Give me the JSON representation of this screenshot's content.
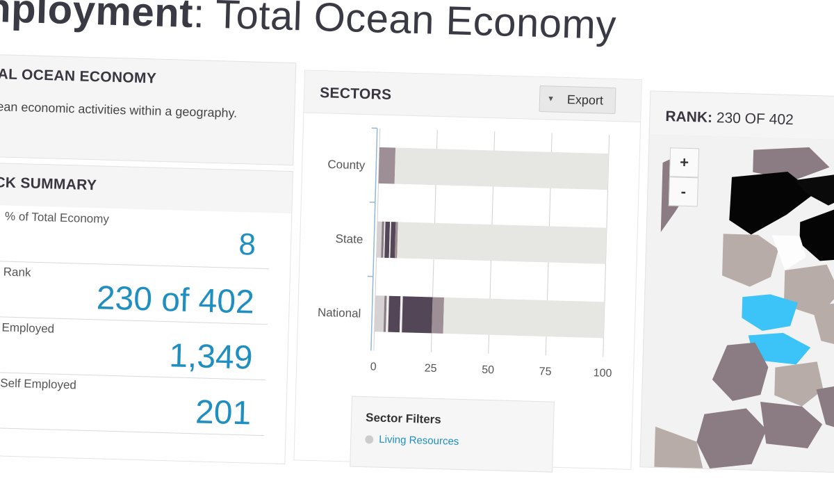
{
  "title": {
    "bold": "nployment",
    "rest": ": Total Ocean Economy"
  },
  "description": {
    "heading": "AL OCEAN ECONOMY",
    "text": "ean economic activities within a geography."
  },
  "summary": {
    "heading": "CK SUMMARY",
    "stats": [
      {
        "label": "% of Total Economy",
        "value": "8"
      },
      {
        "label": "Rank",
        "value": "230 of 402"
      },
      {
        "label": "Employed",
        "value": "1,349"
      },
      {
        "label": "Self Employed",
        "value": "201"
      }
    ]
  },
  "sectors": {
    "heading": "SECTORS",
    "export_label": "Export",
    "export_icon": "caret-down-icon"
  },
  "filters": {
    "title": "Sector Filters",
    "first_item": "Living Resources"
  },
  "map": {
    "rank_key": "RANK:",
    "rank_value": "230 OF 402",
    "zoom_in": "+",
    "zoom_out": "-"
  },
  "colors": {
    "accent": "#1e8fc0",
    "highlight": "#3cc3f7"
  },
  "chart_data": {
    "type": "bar",
    "stacked": true,
    "orientation": "horizontal",
    "categories": [
      "County",
      "State",
      "National"
    ],
    "xlim": [
      0,
      100
    ],
    "xticks": [
      0,
      25,
      50,
      75,
      100
    ],
    "series": [
      {
        "values": [
          0,
          2,
          4
        ],
        "color": "#d6d1d3"
      },
      {
        "values": [
          0,
          1,
          1
        ],
        "color": "#8a7f86"
      },
      {
        "values": [
          0,
          0.5,
          1
        ],
        "color": "#f0eeef"
      },
      {
        "values": [
          0,
          2,
          5
        ],
        "color": "#534757"
      },
      {
        "values": [
          0,
          0.5,
          1
        ],
        "color": "#f0eeef"
      },
      {
        "values": [
          0,
          2,
          13
        ],
        "color": "#534757"
      },
      {
        "values": [
          7,
          1,
          5
        ],
        "color": "#9e8f96"
      },
      {
        "values": [
          93,
          91,
          70
        ],
        "color": "#e6e6e3"
      }
    ]
  }
}
